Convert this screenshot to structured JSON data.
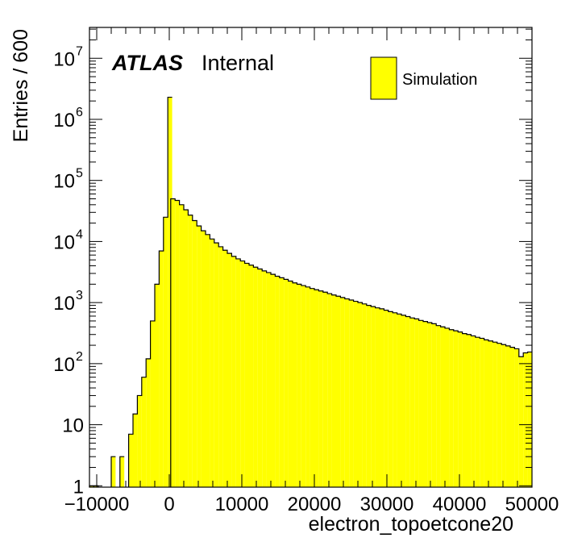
{
  "chart_data": {
    "type": "histogram",
    "title": "",
    "xlabel": "electron_topoetcone20",
    "ylabel": "Entries / 600",
    "xlim": [
      -11000,
      50000
    ],
    "ylim": [
      0.95,
      32000000.0
    ],
    "log_y": true,
    "bin_width": 600,
    "x_ticks": [
      {
        "value": -10000,
        "label": "−10000"
      },
      {
        "value": 0,
        "label": "0"
      },
      {
        "value": 10000,
        "label": "10000"
      },
      {
        "value": 20000,
        "label": "20000"
      },
      {
        "value": 30000,
        "label": "30000"
      },
      {
        "value": 40000,
        "label": "40000"
      },
      {
        "value": 50000,
        "label": "50000"
      }
    ],
    "y_ticks": [
      {
        "value": 1,
        "base": "1",
        "exp": ""
      },
      {
        "value": 10,
        "base": "10",
        "exp": ""
      },
      {
        "value": 100,
        "base": "10",
        "exp": "2"
      },
      {
        "value": 1000,
        "base": "10",
        "exp": "3"
      },
      {
        "value": 10000,
        "base": "10",
        "exp": "4"
      },
      {
        "value": 100000,
        "base": "10",
        "exp": "5"
      },
      {
        "value": 1000000,
        "base": "10",
        "exp": "6"
      },
      {
        "value": 10000000,
        "base": "10",
        "exp": "7"
      }
    ],
    "label": {
      "experiment": "ATLAS",
      "status": "Internal"
    },
    "legend": {
      "position": "top-right",
      "entries": [
        {
          "name": "Simulation",
          "color": "#ffff00"
        }
      ]
    },
    "fill_color": "#ffff00",
    "edge_color": "#000000",
    "bins": [
      [
        -11000,
        1
      ],
      [
        -10400,
        1
      ],
      [
        -8000,
        3
      ],
      [
        -6800,
        3
      ],
      [
        -5600,
        7
      ],
      [
        -5000,
        15
      ],
      [
        -4400,
        30
      ],
      [
        -3800,
        60
      ],
      [
        -3200,
        120
      ],
      [
        -2600,
        500
      ],
      [
        -2000,
        2000
      ],
      [
        -1400,
        7000
      ],
      [
        -800,
        25000
      ],
      [
        -200,
        2300000
      ],
      [
        200,
        50000
      ],
      [
        800,
        47000
      ],
      [
        1400,
        40000
      ],
      [
        2000,
        33000
      ],
      [
        2600,
        27000
      ],
      [
        3200,
        22000
      ],
      [
        3800,
        18000
      ],
      [
        4400,
        15000
      ],
      [
        5000,
        13000
      ],
      [
        5600,
        11000
      ],
      [
        6200,
        9500
      ],
      [
        6800,
        8200
      ],
      [
        7400,
        7200
      ],
      [
        8000,
        6400
      ],
      [
        8600,
        5700
      ],
      [
        9200,
        5200
      ],
      [
        9800,
        4800
      ],
      [
        10400,
        4400
      ],
      [
        11000,
        4100
      ],
      [
        11600,
        3800
      ],
      [
        12200,
        3550
      ],
      [
        12800,
        3300
      ],
      [
        13400,
        3100
      ],
      [
        14000,
        2900
      ],
      [
        14600,
        2700
      ],
      [
        15200,
        2550
      ],
      [
        15800,
        2400
      ],
      [
        16400,
        2250
      ],
      [
        17000,
        2100
      ],
      [
        17600,
        2000
      ],
      [
        18200,
        1900
      ],
      [
        18800,
        1800
      ],
      [
        19400,
        1700
      ],
      [
        20000,
        1620
      ],
      [
        20600,
        1550
      ],
      [
        21200,
        1480
      ],
      [
        21800,
        1400
      ],
      [
        22400,
        1330
      ],
      [
        23000,
        1270
      ],
      [
        23600,
        1210
      ],
      [
        24200,
        1150
      ],
      [
        24800,
        1100
      ],
      [
        25400,
        1050
      ],
      [
        26000,
        1000
      ],
      [
        26600,
        950
      ],
      [
        27200,
        900
      ],
      [
        27800,
        860
      ],
      [
        28400,
        820
      ],
      [
        29000,
        790
      ],
      [
        29600,
        750
      ],
      [
        30200,
        710
      ],
      [
        30800,
        680
      ],
      [
        31400,
        650
      ],
      [
        32000,
        620
      ],
      [
        32600,
        590
      ],
      [
        33200,
        560
      ],
      [
        33800,
        540
      ],
      [
        34400,
        510
      ],
      [
        35000,
        490
      ],
      [
        35600,
        470
      ],
      [
        36200,
        450
      ],
      [
        36800,
        420
      ],
      [
        37400,
        400
      ],
      [
        38000,
        380
      ],
      [
        38600,
        360
      ],
      [
        39200,
        345
      ],
      [
        39800,
        330
      ],
      [
        40400,
        310
      ],
      [
        41000,
        300
      ],
      [
        41600,
        285
      ],
      [
        42200,
        270
      ],
      [
        42800,
        260
      ],
      [
        43400,
        245
      ],
      [
        44000,
        235
      ],
      [
        44600,
        225
      ],
      [
        45200,
        215
      ],
      [
        45800,
        205
      ],
      [
        46400,
        195
      ],
      [
        47000,
        185
      ],
      [
        47600,
        175
      ],
      [
        48200,
        130
      ],
      [
        48800,
        150
      ],
      [
        49400,
        155
      ]
    ]
  }
}
